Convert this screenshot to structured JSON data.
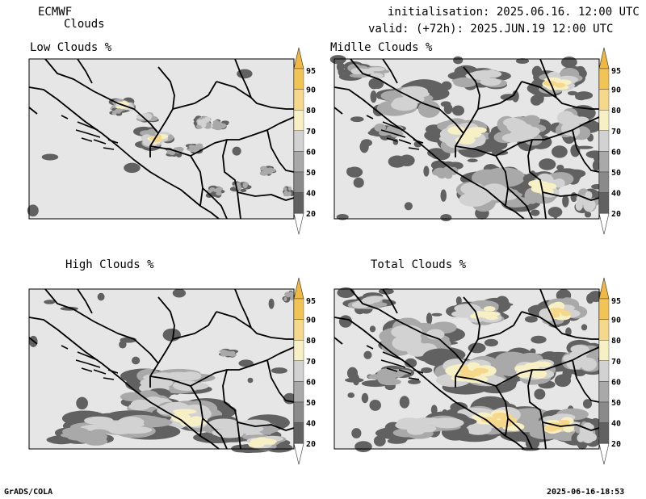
{
  "header": {
    "model": "ECMWF",
    "product": "Clouds",
    "init": "initialisation: 2025.06.16. 12:00 UTC",
    "valid": "valid: (+72h): 2025.JUN.19 12:00 UTC"
  },
  "panels": [
    {
      "id": "low",
      "title": "Low Clouds %"
    },
    {
      "id": "mid",
      "title": "Midlle Clouds %"
    },
    {
      "id": "high",
      "title": "High Clouds %"
    },
    {
      "id": "total",
      "title": "Total Clouds %"
    }
  ],
  "colorbar": {
    "ticks": [
      "95",
      "90",
      "80",
      "70",
      "60",
      "50",
      "40",
      "20"
    ],
    "colors": {
      "top": "#f0b840",
      "c90_95": "#f2c355",
      "c80_90": "#f5d88a",
      "c70_80": "#f7f0c4",
      "c60_70": "#d2d2d2",
      "c50_60": "#a9a9a9",
      "c40_50": "#8a8a8a",
      "c20_40": "#616161",
      "bottom": "#ffffff"
    }
  },
  "footer": {
    "left": "GrADS/COLA",
    "right": "2025-06-16-18:53"
  }
}
